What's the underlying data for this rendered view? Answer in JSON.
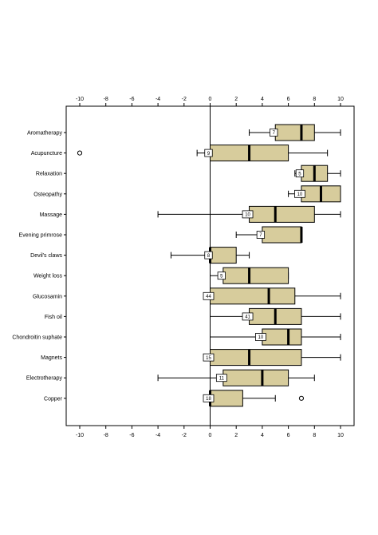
{
  "chart_data": {
    "type": "boxplot",
    "orientation": "horizontal",
    "title": "",
    "xlabel": "",
    "ylabel": "",
    "xlim": [
      -10,
      10
    ],
    "x_ticks": [
      -10,
      -8,
      -6,
      -4,
      -2,
      0,
      2,
      4,
      6,
      8,
      10
    ],
    "reference_line": 0,
    "box_color": "#d7cc9c",
    "median_color": "#000000",
    "categories": [
      {
        "name": "Aromatherapy",
        "n": "7",
        "whisker_low": 3,
        "q1": 5,
        "median": 7,
        "q3": 8,
        "whisker_high": 10,
        "outliers": []
      },
      {
        "name": "Acupuncture",
        "n": "9",
        "whisker_low": -1,
        "q1": 0,
        "median": 3,
        "q3": 6,
        "whisker_high": 9,
        "outliers": [
          -10
        ]
      },
      {
        "name": "Relaxation",
        "n": "5",
        "whisker_low": 6.5,
        "q1": 7,
        "median": 8,
        "q3": 9,
        "whisker_high": 10,
        "outliers": []
      },
      {
        "name": "Osteopathy",
        "n": "10",
        "whisker_low": 6,
        "q1": 7,
        "median": 8.5,
        "q3": 10,
        "whisker_high": 10,
        "outliers": []
      },
      {
        "name": "Massage",
        "n": "10",
        "whisker_low": -4,
        "q1": 3,
        "median": 5,
        "q3": 8,
        "whisker_high": 10,
        "outliers": []
      },
      {
        "name": "Evening primrose",
        "n": "7",
        "whisker_low": 2,
        "q1": 4,
        "median": 7,
        "q3": 7,
        "whisker_high": 7,
        "outliers": []
      },
      {
        "name": "Devil's claws",
        "n": "8",
        "whisker_low": -3,
        "q1": 0,
        "median": 0,
        "q3": 2,
        "whisker_high": 3,
        "outliers": []
      },
      {
        "name": "Weight loss",
        "n": "5",
        "whisker_low": 0,
        "q1": 1,
        "median": 3,
        "q3": 6,
        "whisker_high": 6,
        "outliers": []
      },
      {
        "name": "Glucosamin",
        "n": "44",
        "whisker_low": 0,
        "q1": 0,
        "median": 4.5,
        "q3": 6.5,
        "whisker_high": 10,
        "outliers": []
      },
      {
        "name": "Fish oil",
        "n": "41",
        "whisker_low": 0,
        "q1": 3,
        "median": 5,
        "q3": 7,
        "whisker_high": 10,
        "outliers": []
      },
      {
        "name": "Chondroitin suphate",
        "n": "10",
        "whisker_low": 0,
        "q1": 4,
        "median": 6,
        "q3": 7,
        "whisker_high": 10,
        "outliers": []
      },
      {
        "name": "Magnets",
        "n": "15",
        "whisker_low": 0,
        "q1": 0,
        "median": 3,
        "q3": 7,
        "whisker_high": 10,
        "outliers": []
      },
      {
        "name": "Electrotherapy",
        "n": "11",
        "whisker_low": -4,
        "q1": 1,
        "median": 4,
        "q3": 6,
        "whisker_high": 8,
        "outliers": []
      },
      {
        "name": "Copper",
        "n": "18",
        "whisker_low": 0,
        "q1": 0,
        "median": 0,
        "q3": 2.5,
        "whisker_high": 5,
        "outliers": [
          7
        ]
      }
    ]
  }
}
